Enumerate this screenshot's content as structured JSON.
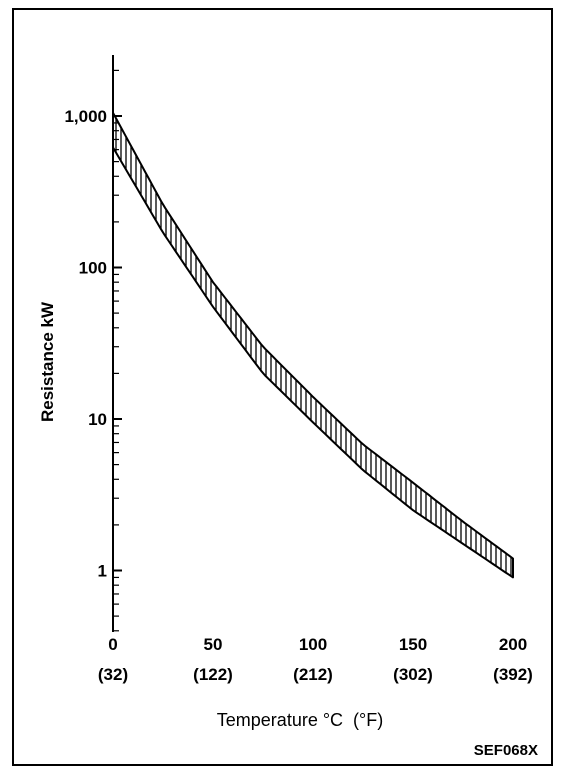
{
  "chart_data": {
    "type": "area",
    "title": "",
    "ylabel": "Resistance kW",
    "xlabel": "Temperature °C  (°F)",
    "figure_code": "SEF068X",
    "y_scale": "log",
    "ylim": [
      0.4,
      2600
    ],
    "xlim": [
      0,
      200
    ],
    "grid": false,
    "y_ticks": [
      {
        "value": 1,
        "label": "1"
      },
      {
        "value": 10,
        "label": "10"
      },
      {
        "value": 100,
        "label": "100"
      },
      {
        "value": 1000,
        "label": "1,000"
      }
    ],
    "x_ticks": [
      {
        "value": 0,
        "label": "0",
        "sub_label": "(32)"
      },
      {
        "value": 50,
        "label": "50",
        "sub_label": "(122)"
      },
      {
        "value": 100,
        "label": "100",
        "sub_label": "(212)"
      },
      {
        "value": 150,
        "label": "150",
        "sub_label": "(302)"
      },
      {
        "value": 200,
        "label": "200",
        "sub_label": "(392)"
      }
    ],
    "x": [
      0,
      25,
      50,
      75,
      100,
      125,
      150,
      175,
      200
    ],
    "band": {
      "upper": [
        1050,
        260,
        80,
        30,
        14,
        6.8,
        3.8,
        2.1,
        1.2
      ],
      "lower": [
        620,
        170,
        55,
        20,
        9.5,
        4.6,
        2.5,
        1.5,
        0.9
      ]
    }
  }
}
